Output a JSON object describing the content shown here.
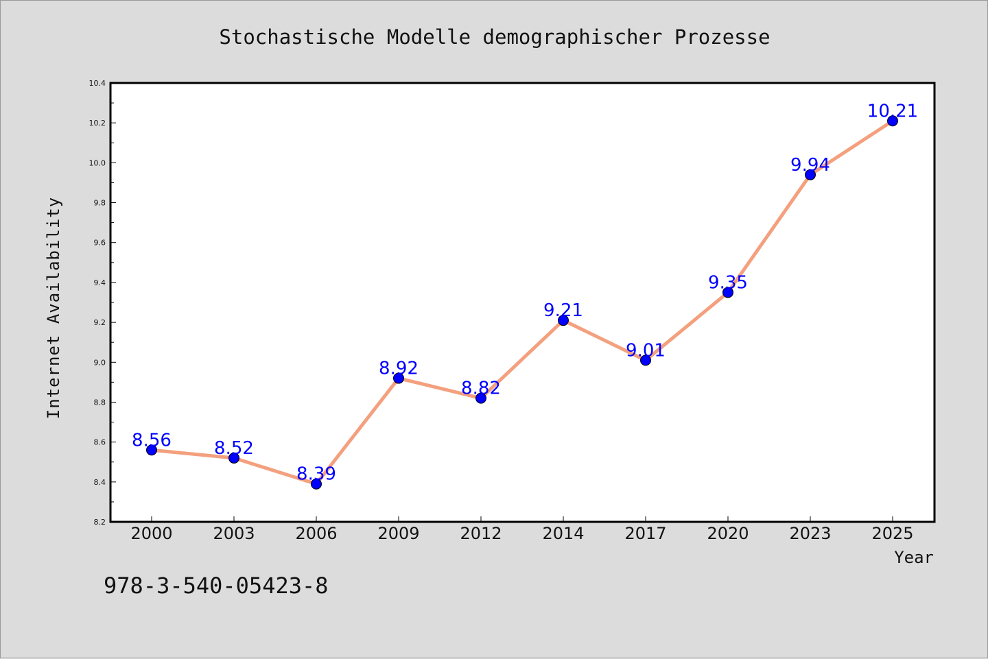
{
  "chart_data": {
    "type": "line",
    "title": "Stochastische Modelle demographischer Prozesse",
    "xlabel": "Year",
    "ylabel": "Internet Availability",
    "categories": [
      "2000",
      "2003",
      "2006",
      "2009",
      "2012",
      "2014",
      "2017",
      "2020",
      "2023",
      "2025"
    ],
    "series": [
      {
        "values": [
          8.56,
          8.52,
          8.39,
          8.92,
          8.82,
          9.21,
          9.01,
          9.35,
          9.94,
          10.21
        ],
        "labels": [
          "8.56",
          "8.52",
          "8.39",
          "8.92",
          "8.82",
          "9.21",
          "9.01",
          "9.35",
          "9.94",
          "10.21"
        ]
      }
    ],
    "ylim": [
      8.2,
      10.4
    ],
    "yticks": [
      "8.2",
      "8.4",
      "8.6",
      "8.8",
      "9.0",
      "9.2",
      "9.4",
      "9.6",
      "9.8",
      "10.0",
      "10.2",
      "10.4"
    ],
    "grid": false,
    "legend": "none",
    "colors": {
      "line": "#f4a07e",
      "marker": "#0000ff",
      "data_label": "#0000ff",
      "plot_background": "#ffffff",
      "figure_background": "#dcdcdc"
    }
  },
  "footer": {
    "isbn": "978-3-540-05423-8"
  }
}
